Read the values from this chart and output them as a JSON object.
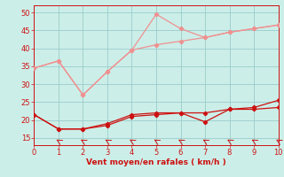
{
  "x": [
    0,
    1,
    2,
    3,
    4,
    5,
    6,
    7,
    8,
    9,
    10
  ],
  "line_upper1": [
    34.5,
    36.5,
    27.0,
    33.5,
    39.5,
    49.5,
    45.5,
    43.0,
    44.5,
    45.5,
    46.5
  ],
  "line_upper2": [
    34.5,
    36.5,
    27.0,
    33.5,
    39.5,
    41.0,
    42.0,
    43.0,
    44.5,
    45.5,
    46.5
  ],
  "line_lower1": [
    21.5,
    17.5,
    17.5,
    19.0,
    21.5,
    22.0,
    22.0,
    19.5,
    23.0,
    23.5,
    25.5
  ],
  "line_lower2": [
    21.5,
    17.5,
    17.5,
    18.5,
    21.0,
    21.5,
    22.0,
    22.0,
    23.0,
    23.0,
    23.5
  ],
  "bg_color": "#cceee8",
  "grid_color": "#99cccc",
  "line_color_light": "#f09090",
  "line_color_dark": "#cc1111",
  "xlabel": "Vent moyen/en rafales ( km/h )",
  "ylim": [
    13,
    52
  ],
  "xlim": [
    0,
    10
  ],
  "yticks": [
    15,
    20,
    25,
    30,
    35,
    40,
    45,
    50
  ],
  "xticks": [
    0,
    1,
    2,
    3,
    4,
    5,
    6,
    7,
    8,
    9,
    10
  ]
}
